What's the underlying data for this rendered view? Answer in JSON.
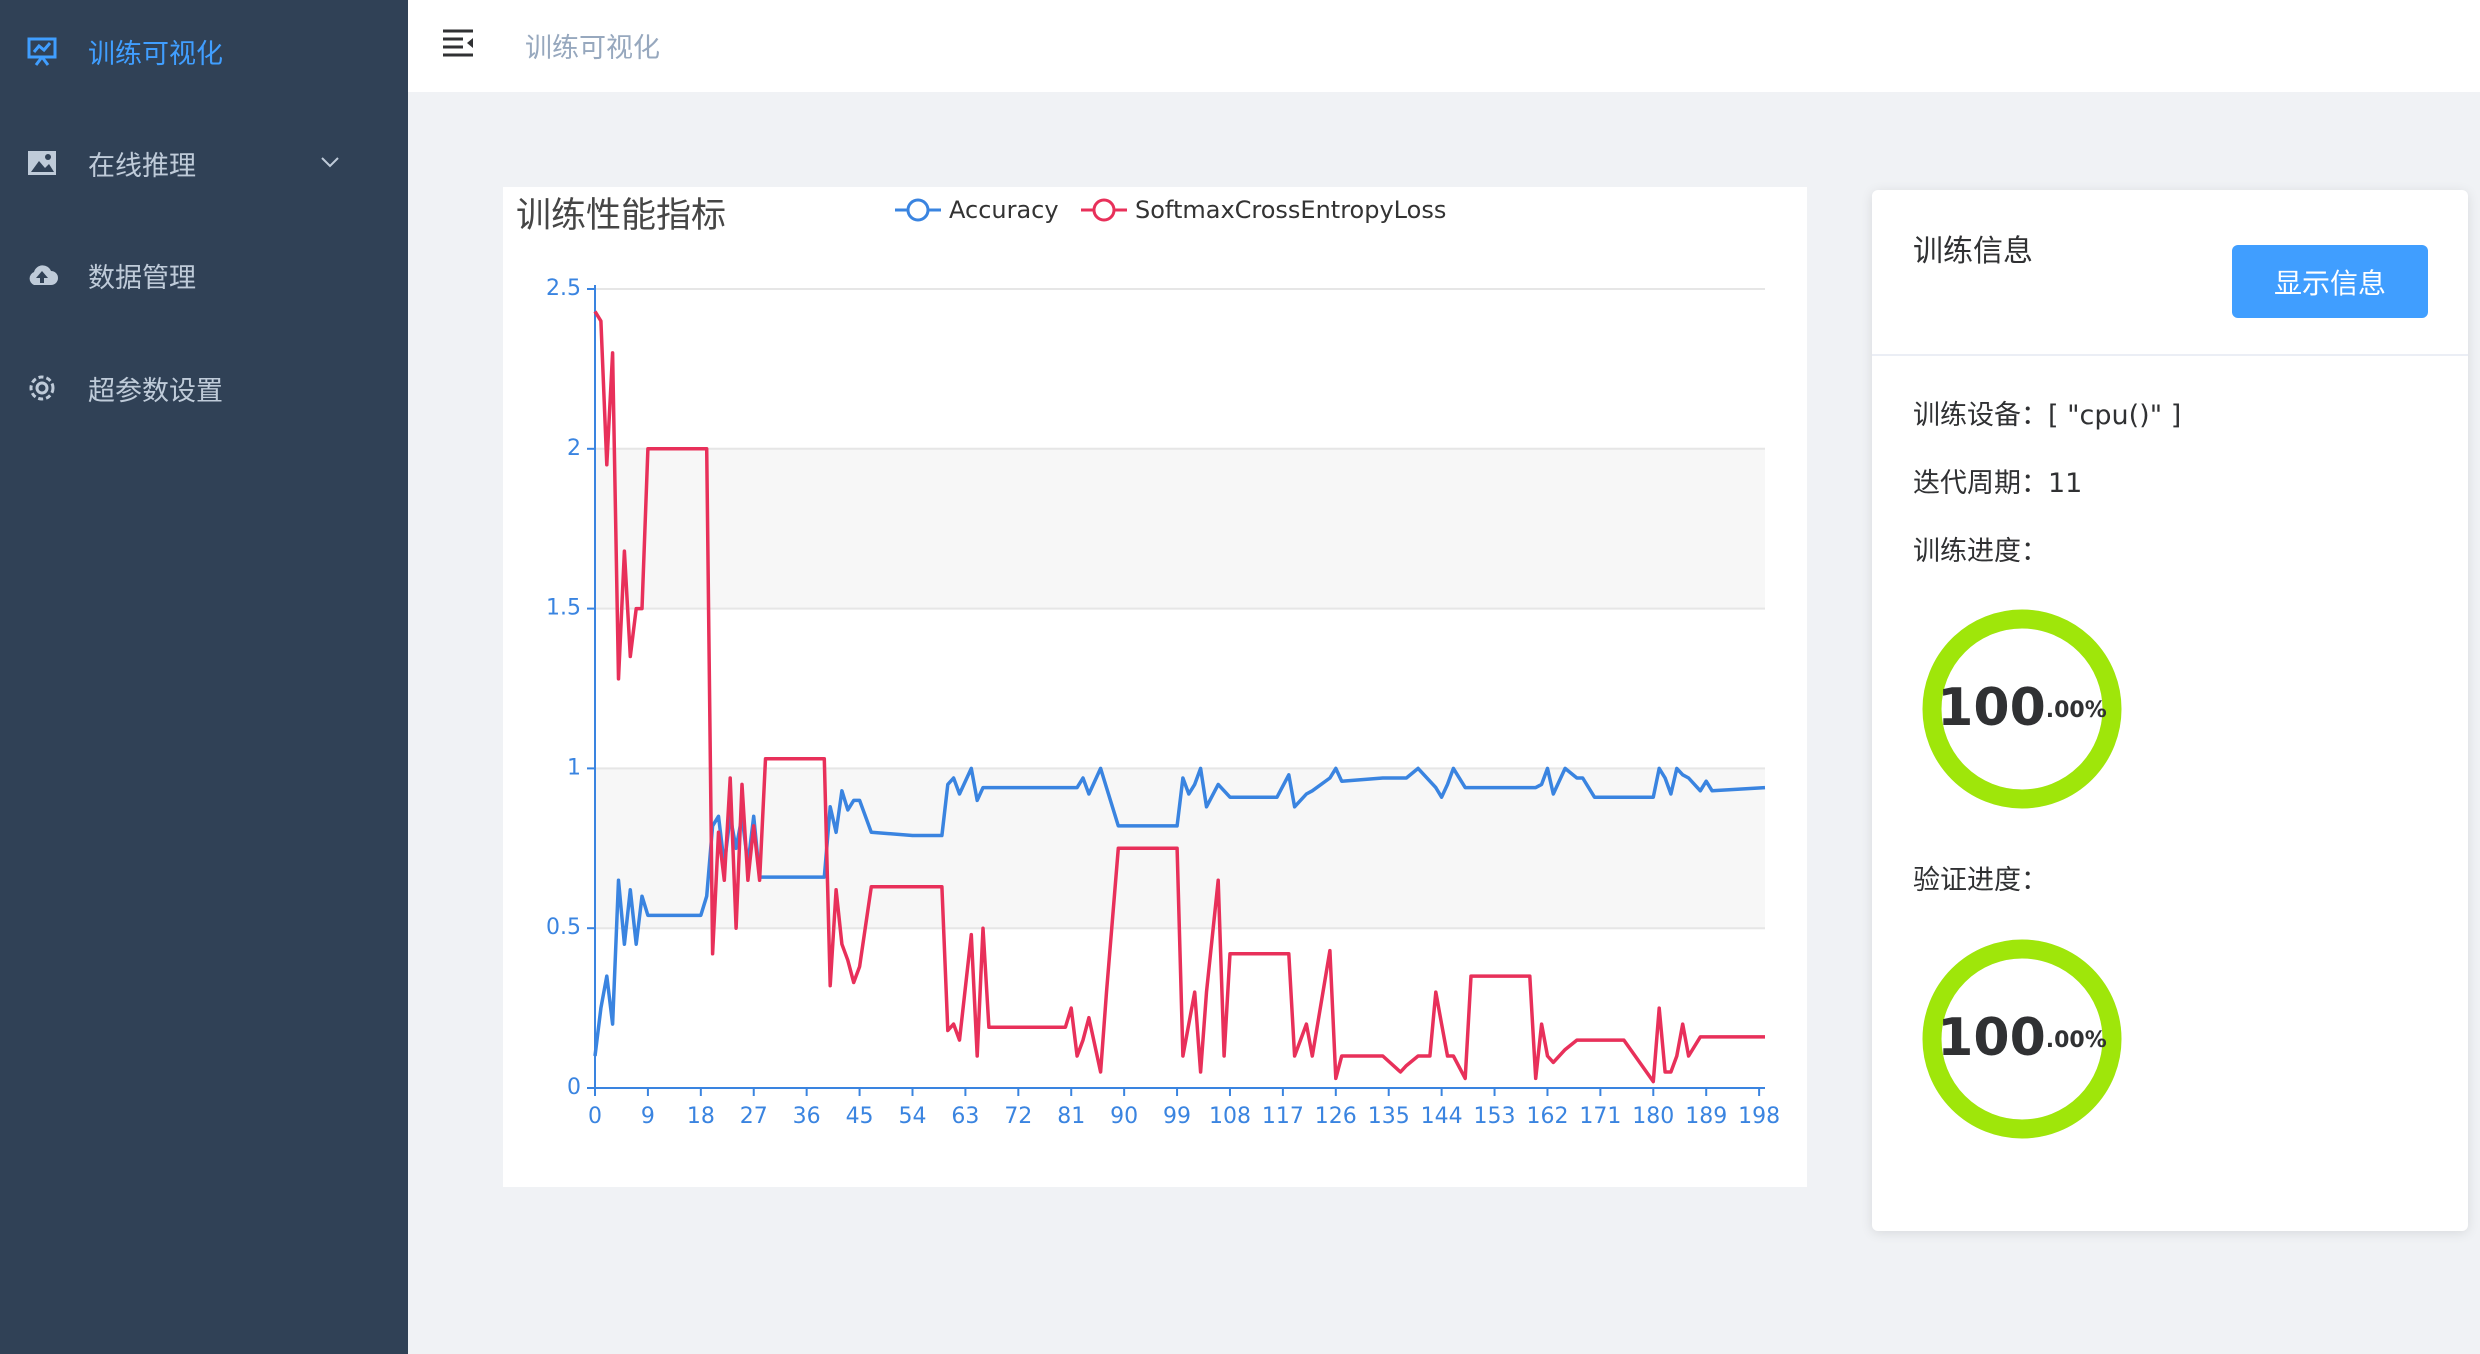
{
  "sidebar": {
    "items": [
      {
        "label": "训练可视化",
        "active": true
      },
      {
        "label": "在线推理"
      },
      {
        "label": "数据管理"
      },
      {
        "label": "超参数设置"
      }
    ]
  },
  "header": {
    "breadcrumb": "训练可视化"
  },
  "chart_data": {
    "type": "line",
    "title": "训练性能指标",
    "x": [
      0,
      1,
      2,
      3,
      4,
      5,
      6,
      7,
      8,
      9,
      18,
      19,
      20,
      21,
      22,
      23,
      24,
      25,
      26,
      27,
      28,
      29,
      36,
      37,
      39,
      40,
      41,
      42,
      43,
      44,
      45,
      47,
      54,
      59,
      60,
      61,
      62,
      64,
      65,
      66,
      67,
      70,
      80,
      81,
      82,
      83,
      84,
      86,
      87,
      89,
      99,
      100,
      101,
      102,
      103,
      104,
      106,
      107,
      108,
      116,
      118,
      119,
      121,
      122,
      125,
      126,
      127,
      134,
      137,
      138,
      140,
      142,
      143,
      144,
      145,
      146,
      148,
      149,
      159,
      160,
      161,
      162,
      163,
      165,
      167,
      168,
      170,
      175,
      180,
      181,
      182,
      183,
      184,
      185,
      186,
      188,
      189,
      190,
      199
    ],
    "series": [
      {
        "name": "Accuracy",
        "color": "#3a84e0",
        "values": [
          0.1,
          0.25,
          0.35,
          0.2,
          0.65,
          0.45,
          0.62,
          0.45,
          0.6,
          0.54,
          0.54,
          0.6,
          0.82,
          0.85,
          0.7,
          0.85,
          0.75,
          0.85,
          0.7,
          0.85,
          0.66,
          0.66,
          0.66,
          0.66,
          0.66,
          0.88,
          0.8,
          0.93,
          0.87,
          0.9,
          0.9,
          0.8,
          0.79,
          0.79,
          0.95,
          0.97,
          0.92,
          1.0,
          0.9,
          0.94,
          0.94,
          0.94,
          0.94,
          0.94,
          0.94,
          0.97,
          0.92,
          1.0,
          0.94,
          0.82,
          0.82,
          0.97,
          0.92,
          0.95,
          1.0,
          0.88,
          0.95,
          0.93,
          0.91,
          0.91,
          0.98,
          0.88,
          0.92,
          0.93,
          0.97,
          1.0,
          0.96,
          0.97,
          0.97,
          0.97,
          1.0,
          0.96,
          0.94,
          0.91,
          0.95,
          1.0,
          0.94,
          0.94,
          0.94,
          0.94,
          0.95,
          1.0,
          0.92,
          1.0,
          0.97,
          0.97,
          0.91,
          0.91,
          0.91,
          1.0,
          0.97,
          0.92,
          1.0,
          0.98,
          0.97,
          0.93,
          0.96,
          0.93,
          0.94
        ]
      },
      {
        "name": "SoftmaxCrossEntropyLoss",
        "color": "#e8305a",
        "values": [
          2.43,
          2.4,
          1.95,
          2.3,
          1.28,
          1.68,
          1.35,
          1.5,
          1.5,
          2.0,
          2.0,
          2.0,
          0.42,
          0.8,
          0.65,
          0.97,
          0.5,
          0.95,
          0.65,
          0.82,
          0.65,
          1.03,
          1.03,
          1.03,
          1.03,
          0.32,
          0.62,
          0.45,
          0.4,
          0.33,
          0.38,
          0.63,
          0.63,
          0.63,
          0.18,
          0.2,
          0.15,
          0.48,
          0.1,
          0.5,
          0.19,
          0.19,
          0.19,
          0.25,
          0.1,
          0.15,
          0.22,
          0.05,
          0.3,
          0.75,
          0.75,
          0.1,
          0.2,
          0.3,
          0.05,
          0.3,
          0.65,
          0.1,
          0.42,
          0.42,
          0.42,
          0.1,
          0.2,
          0.1,
          0.43,
          0.03,
          0.1,
          0.1,
          0.05,
          0.07,
          0.1,
          0.1,
          0.3,
          0.2,
          0.1,
          0.1,
          0.03,
          0.35,
          0.35,
          0.03,
          0.2,
          0.1,
          0.08,
          0.12,
          0.15,
          0.15,
          0.15,
          0.15,
          0.02,
          0.25,
          0.05,
          0.05,
          0.1,
          0.2,
          0.1,
          0.16,
          0.16,
          0.16,
          0.16
        ]
      }
    ],
    "xlim": [
      0,
      199
    ],
    "xticks": [
      0,
      9,
      18,
      27,
      36,
      45,
      54,
      63,
      72,
      81,
      90,
      99,
      108,
      117,
      126,
      135,
      144,
      153,
      162,
      171,
      180,
      189,
      198
    ],
    "ylim": [
      0,
      2.5
    ],
    "yticks": [
      0,
      0.5,
      1,
      1.5,
      2,
      2.5
    ],
    "grid": true
  },
  "info": {
    "title": "训练信息",
    "button": "显示信息",
    "fields": [
      {
        "label": "训练设备：",
        "value": "[ \"cpu()\" ]"
      },
      {
        "label": "迭代周期：",
        "value": "11"
      }
    ],
    "progress": [
      {
        "label": "训练进度：",
        "value": 100,
        "text": "100",
        "suffix": ".00%",
        "color": "#9fe60a"
      },
      {
        "label": "验证进度：",
        "value": 100,
        "text": "100",
        "suffix": ".00%",
        "color": "#9fe60a"
      }
    ]
  }
}
